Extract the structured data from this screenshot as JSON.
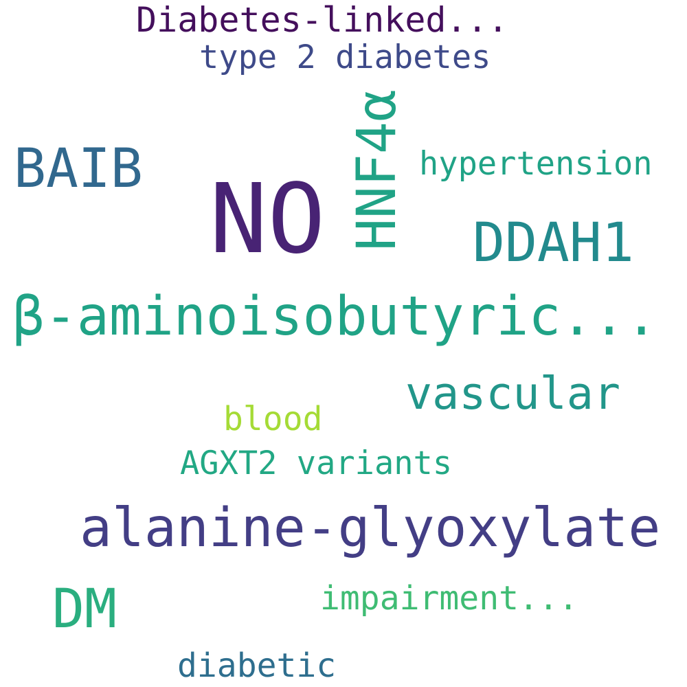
{
  "words": {
    "diabetes_linked": {
      "text": "Diabetes-linked...",
      "color": "#440f5c"
    },
    "type_2_diabetes": {
      "text": "type 2 diabetes",
      "color": "#3e4a89"
    },
    "baib": {
      "text": "BAIB",
      "color": "#31688e"
    },
    "no": {
      "text": "NO",
      "color": "#482374"
    },
    "hnf4a": {
      "text": "HNF4α",
      "color": "#20a386"
    },
    "hypertension": {
      "text": "hypertension",
      "color": "#20a386"
    },
    "ddah1": {
      "text": "DDAH1",
      "color": "#228a8d"
    },
    "beta_aminoisobutyric": {
      "text": "β-aminoisobutyric...",
      "color": "#20a386"
    },
    "vascular": {
      "text": "vascular",
      "color": "#22968a"
    },
    "blood": {
      "text": "blood",
      "color": "#a5db36"
    },
    "agxt2_variants": {
      "text": "AGXT2 variants",
      "color": "#22a884"
    },
    "alanine_glyoxylate": {
      "text": "alanine-glyoxylate",
      "color": "#433e85"
    },
    "dm": {
      "text": "DM",
      "color": "#2aae7f"
    },
    "impairment": {
      "text": "impairment...",
      "color": "#3fbc73"
    },
    "diabetic": {
      "text": "diabetic",
      "color": "#2e6e8e"
    }
  }
}
